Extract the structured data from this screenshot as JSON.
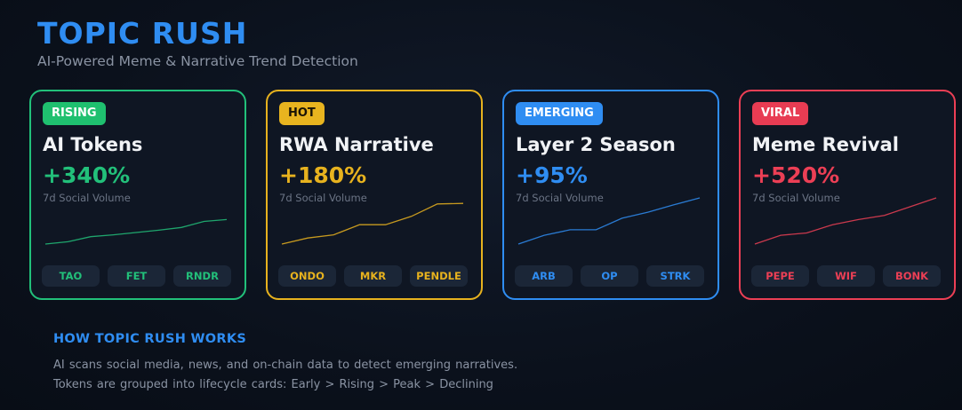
{
  "header": {
    "title": "TOPIC RUSH",
    "subtitle": "AI-Powered Meme & Narrative Trend Detection"
  },
  "cards": [
    {
      "badge": "RISING",
      "name": "AI Tokens",
      "change": "+340%",
      "metric": "7d Social Volume",
      "accent": "#22c07a",
      "badge_color": "#1fc06f",
      "tickers": [
        "TAO",
        "FET",
        "RNDR"
      ],
      "trend": [
        0.0,
        0.05,
        0.16,
        0.2,
        0.25,
        0.3,
        0.36,
        0.49,
        0.53
      ]
    },
    {
      "badge": "HOT",
      "name": "RWA Narrative",
      "change": "+180%",
      "metric": "7d Social Volume",
      "accent": "#e7b21e",
      "badge_color": "#e8b41f",
      "tickers": [
        "ONDO",
        "MKR",
        "PENDLE"
      ],
      "trend": [
        0.0,
        0.13,
        0.2,
        0.42,
        0.42,
        0.6,
        0.87,
        0.88
      ]
    },
    {
      "badge": "EMERGING",
      "name": "Layer 2 Season",
      "change": "+95%",
      "metric": "7d Social Volume",
      "accent": "#2f8df2",
      "badge_color": "#2f8df2",
      "tickers": [
        "ARB",
        "OP",
        "STRK"
      ],
      "trend": [
        0.0,
        0.19,
        0.31,
        0.31,
        0.56,
        0.69,
        0.85,
        1.0
      ]
    },
    {
      "badge": "VIRAL",
      "name": "Meme Revival",
      "change": "+520%",
      "metric": "7d Social Volume",
      "accent": "#ec3f55",
      "badge_color": "#e83c53",
      "tickers": [
        "PEPE",
        "WIF",
        "BONK"
      ],
      "trend": [
        0.0,
        0.19,
        0.24,
        0.42,
        0.53,
        0.62,
        0.81,
        1.0
      ]
    }
  ],
  "how": {
    "title": "HOW TOPIC RUSH WORKS",
    "line1": "AI scans social media, news, and on-chain data to detect emerging narratives.",
    "line2": "Tokens are grouped into lifecycle cards: Early  >  Rising  >  Peak  >  Declining"
  }
}
